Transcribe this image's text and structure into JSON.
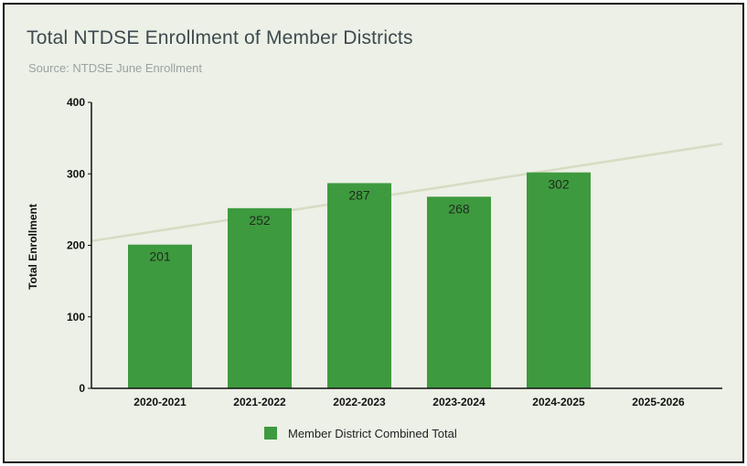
{
  "chart_data": {
    "type": "bar",
    "title": "Total NTDSE Enrollment of Member Districts",
    "subtitle": "Source: NTDSE June Enrollment",
    "xlabel": "",
    "ylabel": "Total Enrollment",
    "categories": [
      "2020-2021",
      "2021-2022",
      "2022-2023",
      "2023-2024",
      "2024-2025",
      "2025-2026"
    ],
    "series": [
      {
        "name": "Member District Combined Total",
        "values": [
          201,
          252,
          287,
          268,
          302,
          null
        ],
        "color": "#3e9a3e"
      }
    ],
    "trendline": {
      "color": "#d6dcc3",
      "start_value": 206,
      "end_value": 342
    },
    "ylim": [
      0,
      400
    ],
    "yticks": [
      0,
      100,
      200,
      300,
      400
    ],
    "grid": false,
    "legend": "bottom"
  }
}
